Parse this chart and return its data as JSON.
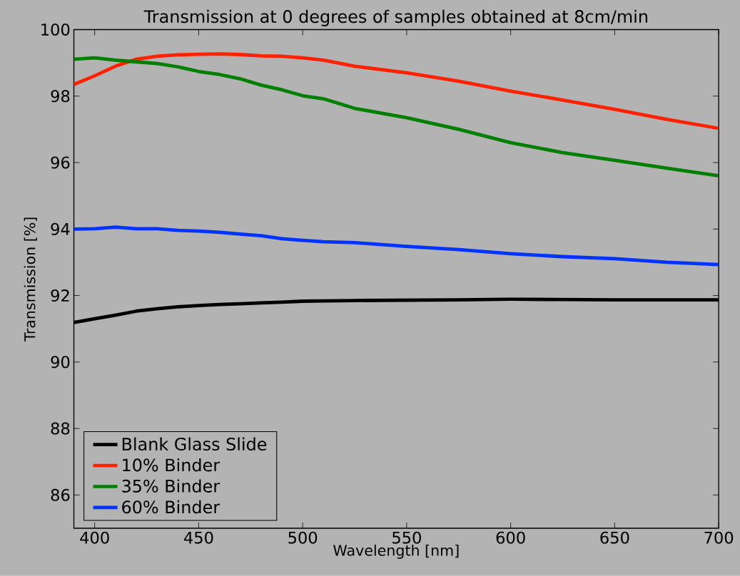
{
  "chart_data": {
    "type": "line",
    "title": "Transmission at 0 degrees of samples obtained at 8cm/min",
    "xlabel": "Wavelength [nm]",
    "ylabel": "Transmission [%]",
    "x": [
      390,
      400,
      410,
      420,
      430,
      440,
      450,
      460,
      470,
      480,
      490,
      500,
      510,
      525,
      550,
      575,
      600,
      625,
      650,
      675,
      700
    ],
    "series": [
      {
        "name": "Blank Glass Slide",
        "color": "#000000",
        "values": [
          91.19,
          91.3,
          91.41,
          91.53,
          91.6,
          91.66,
          91.7,
          91.73,
          91.75,
          91.78,
          91.8,
          91.83,
          91.84,
          91.85,
          91.86,
          91.87,
          91.89,
          91.88,
          91.87,
          91.87,
          91.87
        ]
      },
      {
        "name": "10% Binder",
        "color": "#ff2200",
        "values": [
          98.35,
          98.61,
          98.9,
          99.11,
          99.2,
          99.24,
          99.26,
          99.27,
          99.25,
          99.21,
          99.2,
          99.15,
          99.08,
          98.9,
          98.7,
          98.45,
          98.15,
          97.88,
          97.6,
          97.3,
          97.03
        ]
      },
      {
        "name": "35% Binder",
        "color": "#007f00",
        "values": [
          99.11,
          99.15,
          99.08,
          99.03,
          98.98,
          98.88,
          98.74,
          98.65,
          98.52,
          98.33,
          98.19,
          98.01,
          97.92,
          97.63,
          97.35,
          97.0,
          96.6,
          96.3,
          96.07,
          95.83,
          95.6
        ]
      },
      {
        "name": "60% Binder",
        "color": "#0033ff",
        "values": [
          94.0,
          94.01,
          94.06,
          94.01,
          94.01,
          93.96,
          93.94,
          93.9,
          93.85,
          93.8,
          93.71,
          93.66,
          93.62,
          93.59,
          93.48,
          93.38,
          93.26,
          93.17,
          93.11,
          93.0,
          92.93
        ]
      }
    ],
    "xlim": [
      390,
      700
    ],
    "ylim": [
      85,
      100
    ],
    "xticks": [
      400,
      450,
      500,
      550,
      600,
      650,
      700
    ],
    "yticks": [
      86,
      88,
      90,
      92,
      94,
      96,
      98,
      100
    ],
    "grid": false,
    "legend": "bottom left",
    "marker": "none",
    "line_style": "solid"
  }
}
